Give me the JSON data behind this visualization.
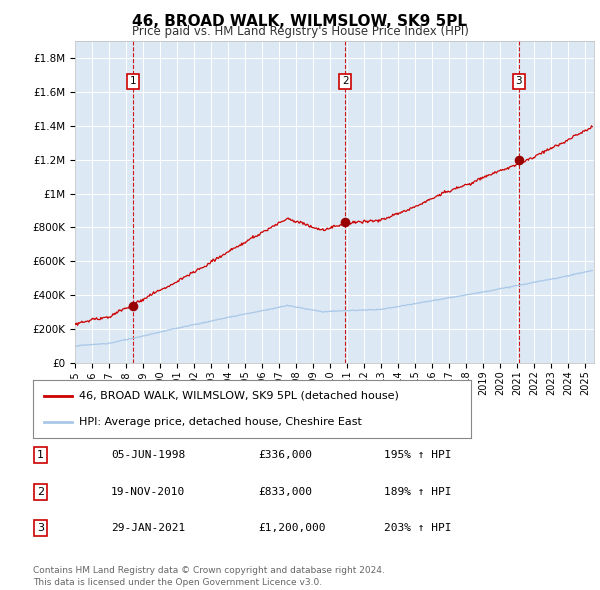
{
  "title": "46, BROAD WALK, WILMSLOW, SK9 5PL",
  "subtitle": "Price paid vs. HM Land Registry's House Price Index (HPI)",
  "bg_color": "#dce9f5",
  "red_line_color": "#cc0000",
  "blue_line_color": "#aac8e8",
  "marker_color": "#990000",
  "vline_color": "#cc0000",
  "sale_dates_num": [
    1998.43,
    2010.89,
    2021.08
  ],
  "sale_prices": [
    336000,
    833000,
    1200000
  ],
  "sale_labels": [
    "1",
    "2",
    "3"
  ],
  "legend_red": "46, BROAD WALK, WILMSLOW, SK9 5PL (detached house)",
  "legend_blue": "HPI: Average price, detached house, Cheshire East",
  "table_data": [
    [
      "1",
      "05-JUN-1998",
      "£336,000",
      "195% ↑ HPI"
    ],
    [
      "2",
      "19-NOV-2010",
      "£833,000",
      "189% ↑ HPI"
    ],
    [
      "3",
      "29-JAN-2021",
      "£1,200,000",
      "203% ↑ HPI"
    ]
  ],
  "footer": "Contains HM Land Registry data © Crown copyright and database right 2024.\nThis data is licensed under the Open Government Licence v3.0.",
  "xmin": 1995.0,
  "xmax": 2025.5,
  "ymin": 0,
  "ymax": 1900000,
  "yticks": [
    0,
    200000,
    400000,
    600000,
    800000,
    1000000,
    1200000,
    1400000,
    1600000,
    1800000
  ],
  "ytick_labels": [
    "£0",
    "£200K",
    "£400K",
    "£600K",
    "£800K",
    "£1M",
    "£1.2M",
    "£1.4M",
    "£1.6M",
    "£1.8M"
  ],
  "xticks": [
    1995,
    1996,
    1997,
    1998,
    1999,
    2000,
    2001,
    2002,
    2003,
    2004,
    2005,
    2006,
    2007,
    2008,
    2009,
    2010,
    2011,
    2012,
    2013,
    2014,
    2015,
    2016,
    2017,
    2018,
    2019,
    2020,
    2021,
    2022,
    2023,
    2024,
    2025
  ]
}
